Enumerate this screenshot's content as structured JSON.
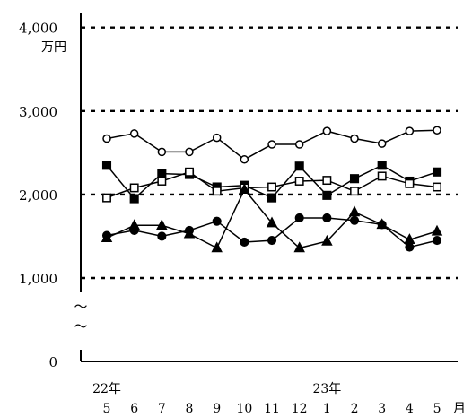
{
  "chart_data": {
    "type": "line",
    "ylabel": "万円",
    "x_unit": "月",
    "y_ticks": [
      "0",
      "1,000",
      "2,000",
      "3,000",
      "4,000"
    ],
    "y_break_marks": [
      "～",
      "～"
    ],
    "ylim": [
      0,
      4000
    ],
    "grid": true,
    "months": [
      "5",
      "6",
      "7",
      "8",
      "9",
      "10",
      "11",
      "12",
      "1",
      "2",
      "3",
      "4",
      "5"
    ],
    "year_labels": [
      {
        "index": 0,
        "text": "22年"
      },
      {
        "index": 8,
        "text": "23年"
      }
    ],
    "series": [
      {
        "marker": "open-circle",
        "values": [
          2670,
          2730,
          2510,
          2510,
          2680,
          2420,
          2600,
          2600,
          2760,
          2670,
          2610,
          2760,
          2770
        ]
      },
      {
        "marker": "filled-square",
        "values": [
          2350,
          1950,
          2250,
          2240,
          2090,
          2110,
          1960,
          2340,
          1990,
          2190,
          2350,
          2160,
          2270
        ]
      },
      {
        "marker": "open-square",
        "values": [
          1960,
          2080,
          2160,
          2270,
          2040,
          2080,
          2090,
          2160,
          2170,
          2040,
          2220,
          2130,
          2090
        ]
      },
      {
        "marker": "filled-circle",
        "values": [
          1510,
          1570,
          1500,
          1570,
          1680,
          1430,
          1450,
          1720,
          1720,
          1690,
          1640,
          1370,
          1450
        ]
      },
      {
        "marker": "filled-triangle",
        "values": [
          1480,
          1630,
          1630,
          1530,
          1360,
          2060,
          1660,
          1360,
          1440,
          1790,
          1640,
          1460,
          1560
        ]
      }
    ]
  }
}
